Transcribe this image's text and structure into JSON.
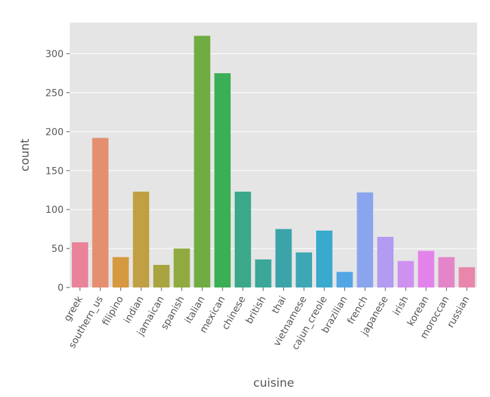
{
  "chart_data": {
    "type": "bar",
    "xlabel": "cuisine",
    "ylabel": "count",
    "ylim": [
      0,
      340
    ],
    "yticks": [
      0,
      50,
      100,
      150,
      200,
      250,
      300
    ],
    "grid": true,
    "background_color": "#e5e5e5",
    "grid_color": "#ffffff",
    "categories": [
      "greek",
      "southern_us",
      "filipino",
      "indian",
      "jamaican",
      "spanish",
      "italian",
      "mexican",
      "chinese",
      "british",
      "thai",
      "vietnamese",
      "cajun_creole",
      "brazilian",
      "french",
      "japanese",
      "irish",
      "korean",
      "moroccan",
      "russian"
    ],
    "values": [
      58,
      192,
      39,
      123,
      29,
      50,
      323,
      275,
      123,
      36,
      75,
      45,
      73,
      20,
      122,
      65,
      34,
      47,
      39,
      26
    ],
    "colors": [
      "#e8839a",
      "#e58f71",
      "#d6993f",
      "#c0a042",
      "#a9a43f",
      "#91aa3f",
      "#6fac41",
      "#3aaf55",
      "#3ba989",
      "#3ba798",
      "#3ba4a9",
      "#3da7b6",
      "#39a9ce",
      "#52a6e4",
      "#8aa5ed",
      "#b29bf0",
      "#cf91ef",
      "#e482ec",
      "#e385c8",
      "#e887ab"
    ]
  }
}
